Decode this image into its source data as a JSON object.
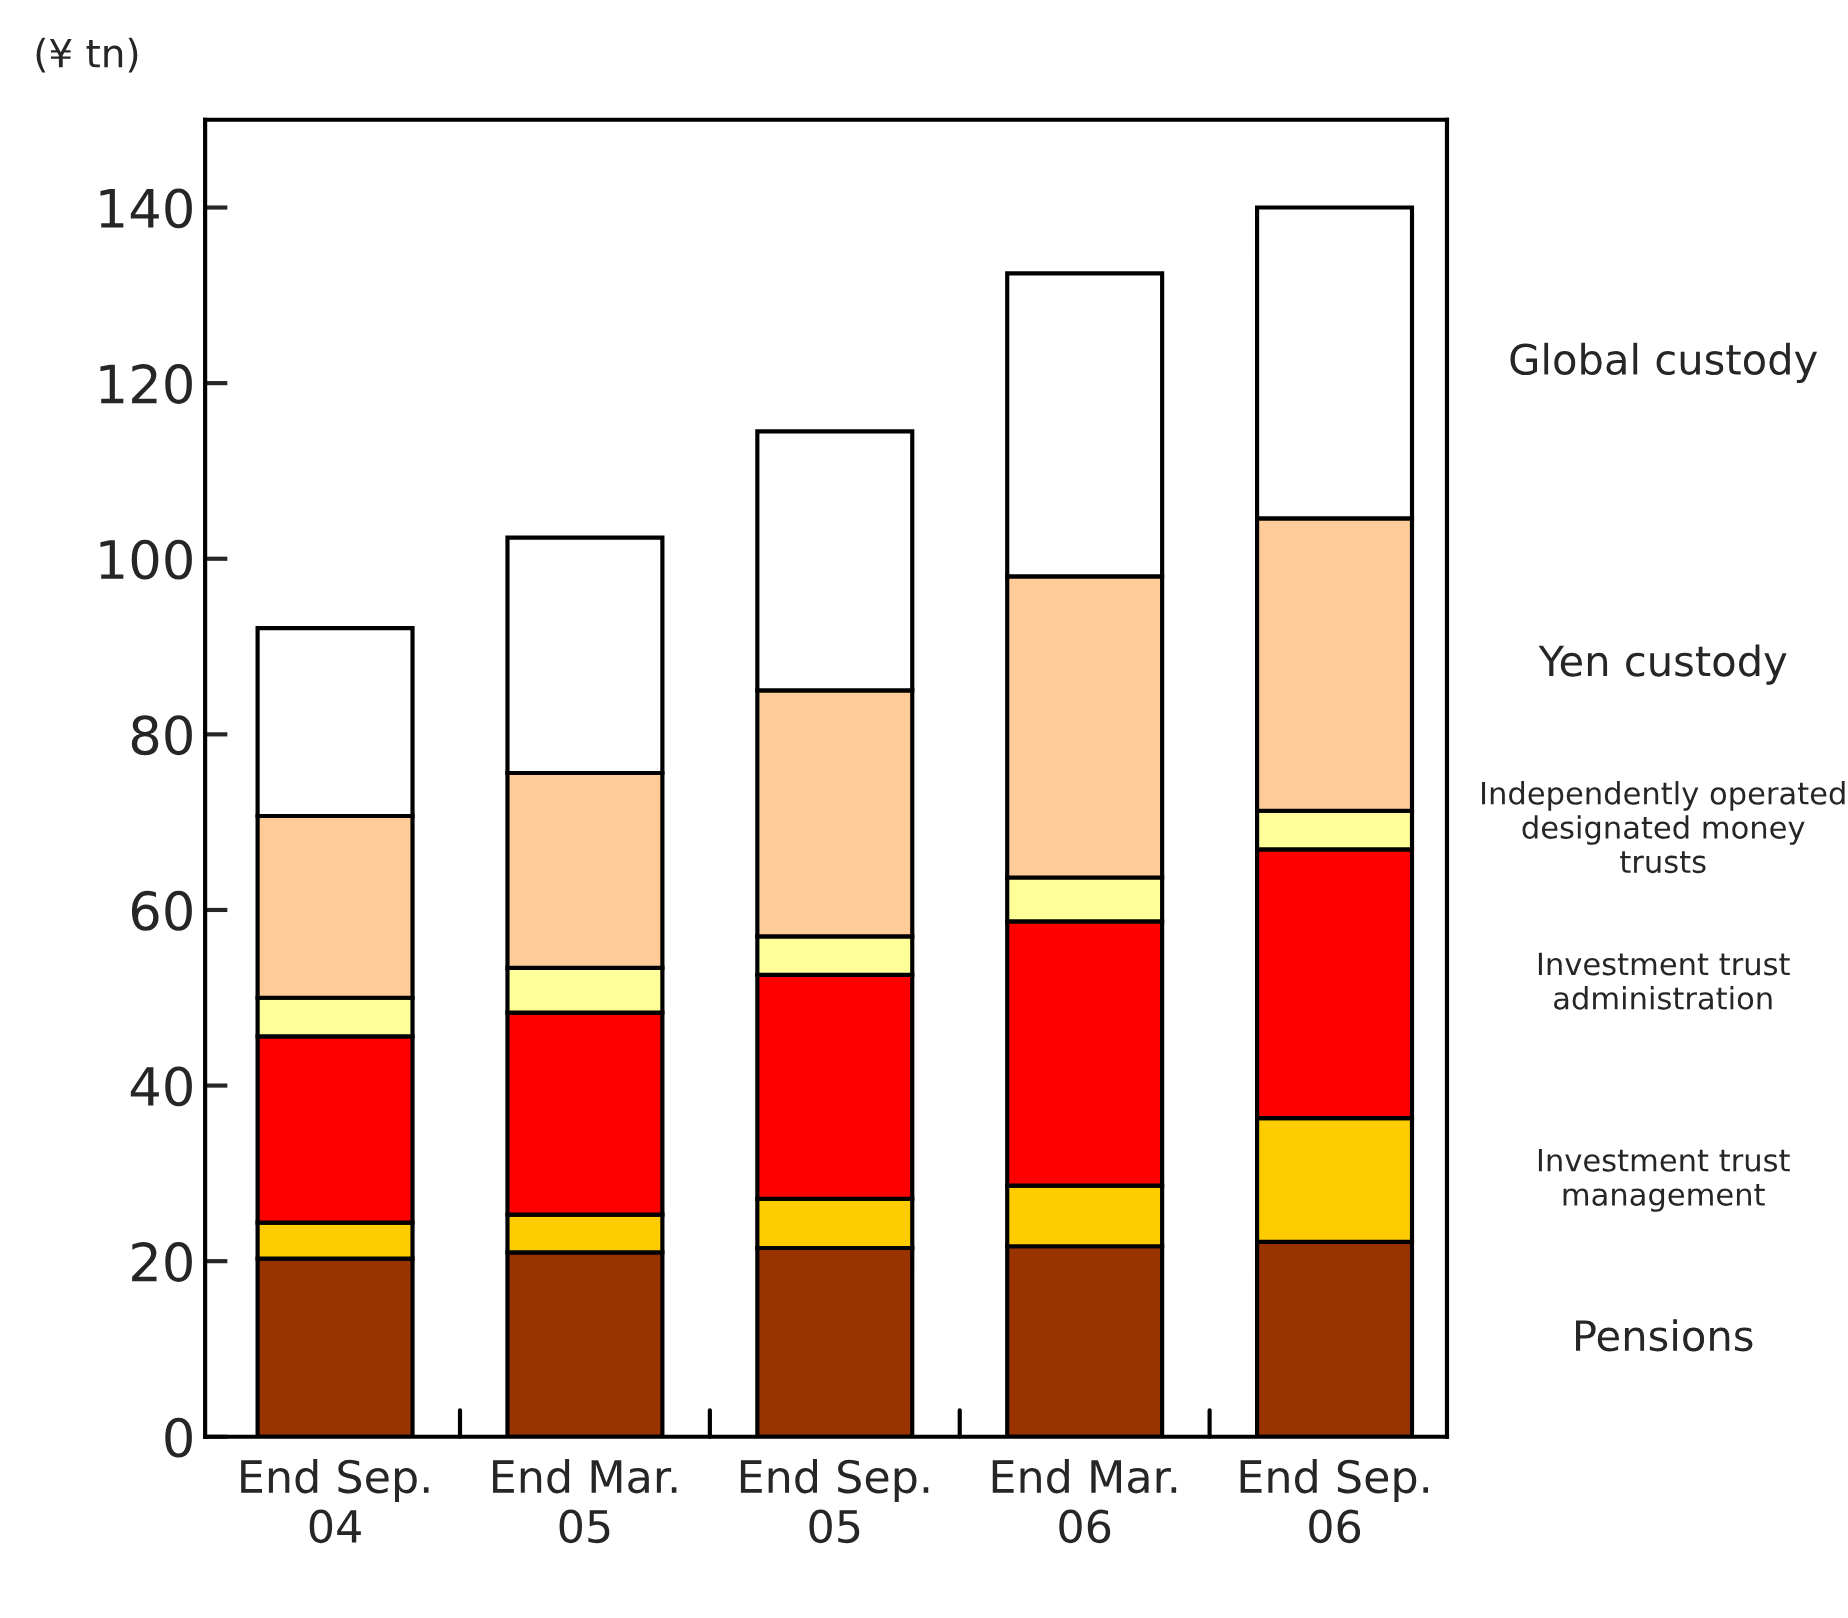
{
  "chart_data": {
    "type": "bar",
    "stacked": true,
    "ylabel": "(¥ tn)",
    "categories": [
      "End Sep.\n04",
      "End Mar.\n05",
      "End Sep.\n05",
      "End Mar.\n06",
      "End Sep.\n06"
    ],
    "series": [
      {
        "name": "Pensions",
        "color": "#993300",
        "values": [
          20.3,
          21.0,
          21.5,
          21.7,
          22.2
        ]
      },
      {
        "name": "Investment trust management",
        "color": "#ffcc00",
        "values": [
          4.1,
          4.3,
          5.6,
          6.9,
          14.1
        ]
      },
      {
        "name": "Investment trust administration",
        "color": "#ff0000",
        "values": [
          21.2,
          23.0,
          25.5,
          30.1,
          30.6
        ]
      },
      {
        "name": "Independently operated designated money trusts",
        "color": "#ffff99",
        "values": [
          4.4,
          5.1,
          4.4,
          5.0,
          4.4
        ]
      },
      {
        "name": "Yen custody",
        "color": "#ffcc99",
        "values": [
          20.7,
          22.2,
          28.0,
          34.3,
          33.3
        ]
      },
      {
        "name": "Global custody",
        "color": "#ffffff",
        "values": [
          21.4,
          26.8,
          29.5,
          34.5,
          35.4
        ]
      }
    ],
    "ylim": [
      0,
      150
    ],
    "yticks": [
      0,
      20,
      40,
      60,
      80,
      100,
      120,
      140
    ],
    "grid": false,
    "legend": false
  }
}
